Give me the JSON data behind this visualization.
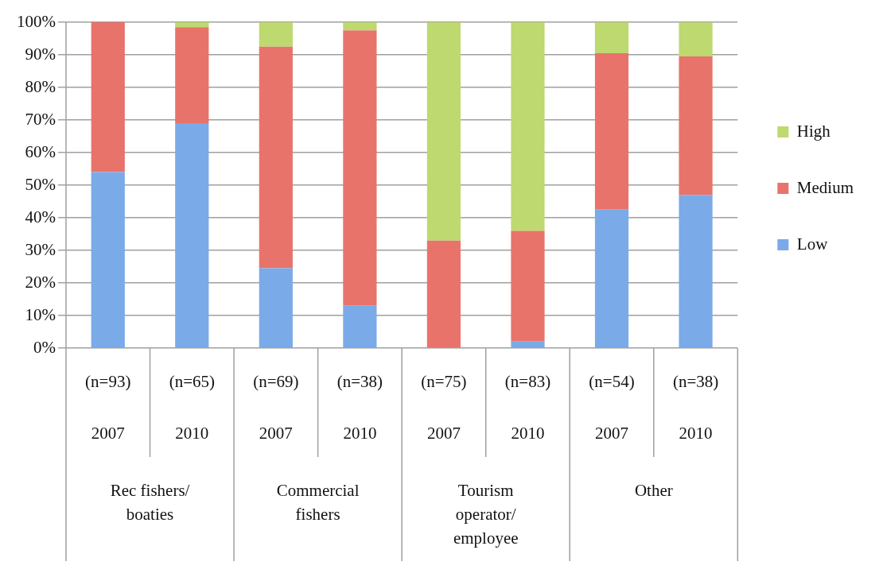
{
  "chart_data": {
    "type": "bar",
    "stacked": true,
    "categories": [
      "(n=93)\n2007",
      "(n=65)\n2010",
      "(n=69)\n2007",
      "(n=38)\n2010",
      "(n=75)\n2007",
      "(n=83)\n2010",
      "(n=54)\n2007",
      "(n=38)\n2010"
    ],
    "series": [
      {
        "name": "Low",
        "color": "#7aaae8",
        "values": [
          54,
          69,
          24.5,
          13,
          0,
          2,
          42.5,
          47
        ]
      },
      {
        "name": "Medium",
        "color": "#e8736b",
        "values": [
          46,
          29.5,
          68,
          84.5,
          33,
          34,
          48,
          42.5
        ]
      },
      {
        "name": "High",
        "color": "#bdd96f",
        "values": [
          0,
          1.5,
          7.5,
          2.5,
          67,
          64,
          9.5,
          10.5
        ]
      }
    ],
    "ylim": [
      0,
      100
    ],
    "yticks": [
      {
        "value": 0,
        "label": "0%"
      },
      {
        "value": 10,
        "label": "10%"
      },
      {
        "value": 20,
        "label": "20%"
      },
      {
        "value": 30,
        "label": "30%"
      },
      {
        "value": 40,
        "label": "40%"
      },
      {
        "value": 50,
        "label": "50%"
      },
      {
        "value": 60,
        "label": "60%"
      },
      {
        "value": 70,
        "label": "70%"
      },
      {
        "value": 80,
        "label": "80%"
      },
      {
        "value": 90,
        "label": "90%"
      },
      {
        "value": 100,
        "label": "100%"
      }
    ],
    "grid": "y",
    "legend": "right",
    "annotations": [
      "Rec fishers/\nboaties",
      "Commercial\nfishers",
      "Tourism\noperator/\nemployee",
      "Other"
    ]
  }
}
